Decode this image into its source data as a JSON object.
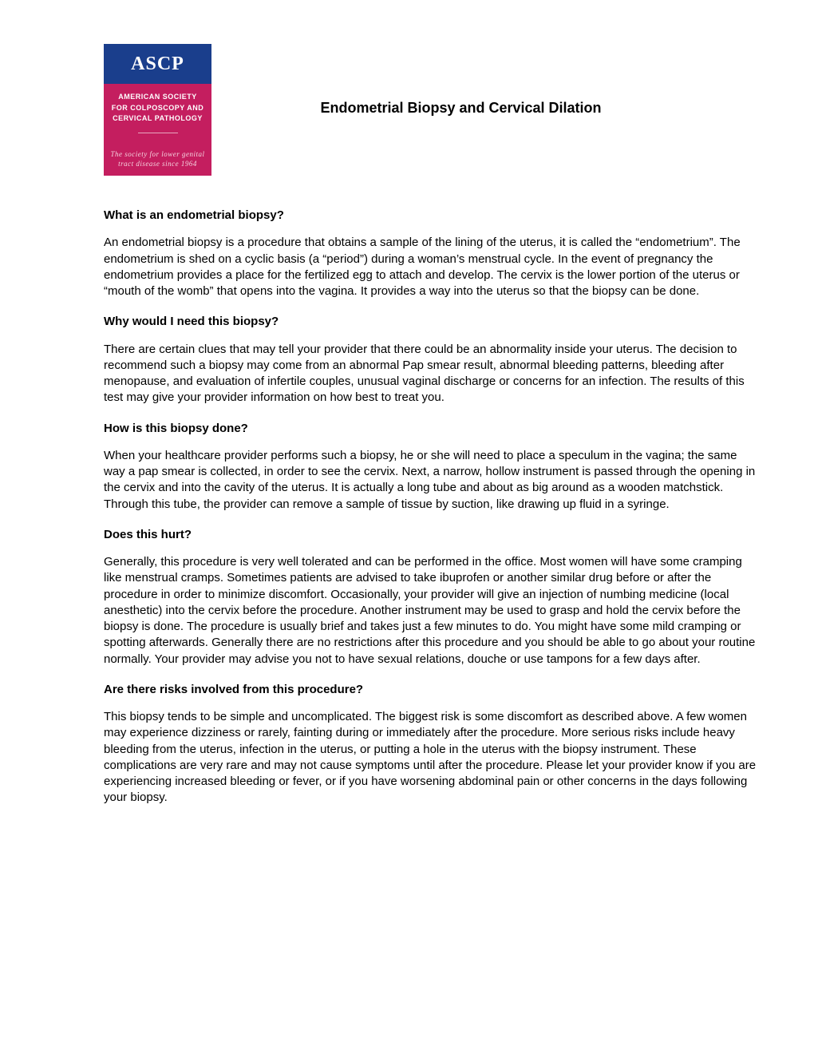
{
  "logo": {
    "acronym": "ASCP",
    "line1": "AMERICAN SOCIETY",
    "line2": "FOR COLPOSCOPY AND",
    "line3": "CERVICAL PATHOLOGY",
    "tagline1": "The society for lower genital",
    "tagline2": "tract disease since 1964",
    "top_bg": "#1a3e8c",
    "mid_bg": "#c41e5f"
  },
  "title": "Endometrial Biopsy and Cervical Dilation",
  "sections": [
    {
      "heading": "What is an endometrial biopsy?",
      "body": "An endometrial biopsy is a procedure that obtains a sample of the lining of the uterus, it is called the “endometrium”.  The endometrium is shed on a cyclic basis (a “period”) during a woman’s menstrual cycle.   In the event of pregnancy the endometrium provides a place for the fertilized egg to attach and develop. The cervix is the lower portion of the uterus or “mouth of the womb” that opens into the vagina.  It provides a way into the uterus so that the biopsy can be done."
    },
    {
      "heading": "Why would I need this biopsy?",
      "body": "There are certain clues that may tell your provider that there could be an abnormality inside your uterus. The decision to recommend such a biopsy may come from an abnormal Pap smear result, abnormal bleeding patterns, bleeding after menopause, and evaluation of infertile couples, unusual vaginal discharge or concerns for an infection. The results of this test may give your provider information on how best to treat you."
    },
    {
      "heading": "How is this biopsy done?",
      "body": "When your healthcare provider performs such a biopsy, he or she will need to place a speculum in the vagina; the same way a pap smear is collected, in order to see the cervix.   Next, a narrow, hollow instrument is passed through the opening in the cervix and into the cavity of the uterus.   It is actually a long tube and about as big around as a wooden matchstick.  Through this tube, the provider can remove a sample of tissue by suction, like drawing up fluid in a syringe."
    },
    {
      "heading": "Does this hurt?",
      "body": "Generally, this procedure is very well tolerated and can be performed in the office. Most women will have some cramping like menstrual cramps. Sometimes patients are advised to take ibuprofen or another similar drug before or after the procedure in order to minimize discomfort. Occasionally, your provider will give an injection of numbing medicine (local anesthetic) into the cervix before the procedure. Another instrument may be used to grasp and hold the cervix before the biopsy is done. The procedure is usually brief and takes just a few minutes to do. You might have some mild cramping or spotting afterwards. Generally there are no restrictions after this procedure and you should be able to go about your routine normally.  Your provider may advise you not to have sexual relations, douche or use tampons for a few days after."
    },
    {
      "heading": "Are there risks involved from this procedure?",
      "body": "This biopsy tends to be simple and uncomplicated. The biggest risk is some discomfort as described above. A few women may experience dizziness or rarely, fainting during or immediately after the procedure. More serious risks include heavy bleeding from the uterus, infection in the uterus, or putting a hole in the uterus with the biopsy instrument. These complications are very rare and may not cause symptoms until after the procedure. Please let your provider know if you are experiencing increased bleeding or fever, or if you have worsening abdominal pain or other concerns in the days following your biopsy."
    }
  ]
}
